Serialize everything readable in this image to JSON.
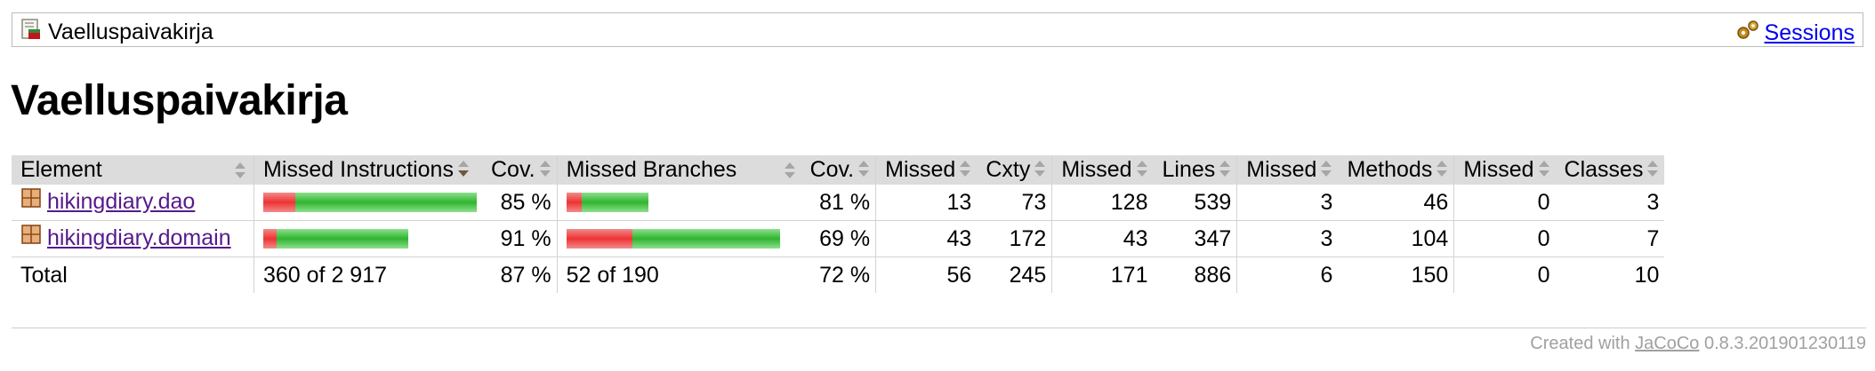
{
  "breadcrumb": {
    "title": "Vaelluspaivakirja",
    "title_icon": "report-icon",
    "sessions_label": "Sessions",
    "sessions_icon": "gears-icon"
  },
  "page": {
    "title": "Vaelluspaivakirja"
  },
  "table": {
    "headers": {
      "element": "Element",
      "missed_instructions": "Missed Instructions",
      "cov_instructions": "Cov.",
      "missed_branches": "Missed Branches",
      "cov_branches": "Cov.",
      "missed_cxty": "Missed",
      "cxty": "Cxty",
      "missed_lines": "Missed",
      "lines": "Lines",
      "missed_methods": "Missed",
      "methods": "Methods",
      "missed_classes": "Missed",
      "classes": "Classes"
    },
    "rows": [
      {
        "name": "hikingdiary.dao",
        "icon": "package-icon",
        "instructions_missed_fraction": 0.15,
        "instructions_cov": "85 %",
        "branches_missed_fraction": 0.19,
        "branches_cov": "81 %",
        "missed_cxty": "13",
        "cxty": "73",
        "missed_lines": "128",
        "lines": "539",
        "missed_methods": "3",
        "methods": "46",
        "missed_classes": "0",
        "classes": "3"
      },
      {
        "name": "hikingdiary.domain",
        "icon": "package-icon",
        "instructions_missed_fraction": 0.09,
        "instructions_cov": "91 %",
        "branches_missed_fraction": 0.31,
        "branches_cov": "69 %",
        "missed_cxty": "43",
        "cxty": "172",
        "missed_lines": "43",
        "lines": "347",
        "missed_methods": "3",
        "methods": "104",
        "missed_classes": "0",
        "classes": "7"
      }
    ],
    "total": {
      "label": "Total",
      "instructions": "360 of 2 917",
      "instructions_cov": "87 %",
      "branches": "52 of 190",
      "branches_cov": "72 %",
      "missed_cxty": "56",
      "cxty": "245",
      "missed_lines": "171",
      "lines": "886",
      "missed_methods": "6",
      "methods": "150",
      "missed_classes": "0",
      "classes": "10"
    }
  },
  "colors": {
    "missed": "#e33333",
    "covered": "#2fb52f",
    "header_bg": "#dcdcdc",
    "link": "#551a8b"
  },
  "footer": {
    "prefix": "Created with ",
    "link": "JaCoCo",
    "version": " 0.8.3.201901230119"
  }
}
